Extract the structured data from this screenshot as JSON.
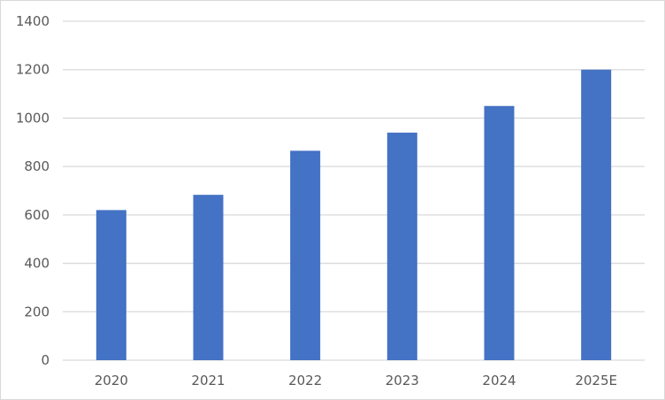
{
  "chart_data": {
    "type": "bar",
    "title": "",
    "xlabel": "",
    "ylabel": "",
    "categories": [
      "2020",
      "2021",
      "2022",
      "2023",
      "2024",
      "2025E"
    ],
    "values": [
      620,
      683,
      865,
      940,
      1050,
      1200
    ],
    "ylim": [
      0,
      1400
    ],
    "yticks": [
      0,
      200,
      400,
      600,
      800,
      1000,
      1200,
      1400
    ],
    "grid": true,
    "legend": "none",
    "colors": {
      "bar": "#4472c4",
      "grid": "#d9d9d9",
      "text": "#595959"
    }
  }
}
